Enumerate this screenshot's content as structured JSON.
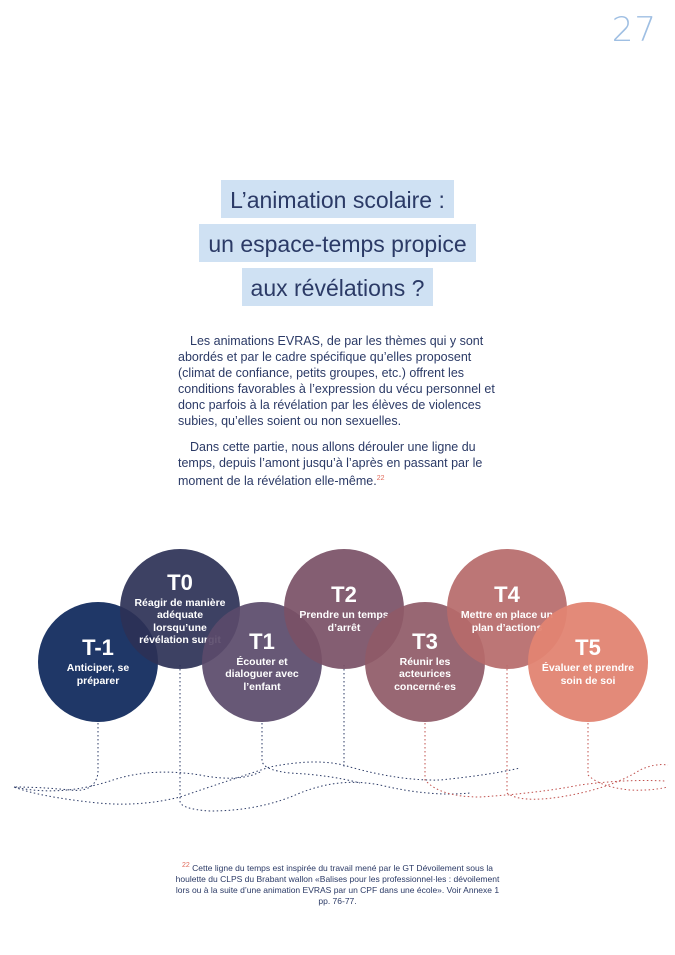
{
  "page_number": "27",
  "title_lines": [
    "L’animation scolaire :",
    "un espace-temps propice",
    "aux révélations ?"
  ],
  "intro": {
    "p1": "Les animations EVRAS, de par les thèmes qui y sont abordés et par le cadre spécifique qu’elles proposent (climat de confiance, petits groupes, etc.) offrent les conditions favorables à l’expression du vécu personnel et donc parfois à la révélation par les élèves de violences subies, qu’elles soient ou non sexuelles.",
    "p2": "Dans cette partie, nous allons dérouler une ligne du temps, depuis l’amont jusqu’à l’après en passant par le moment de la révélation elle-même.",
    "footnote_ref": "22"
  },
  "timeline": [
    {
      "code": "T-1",
      "label": "Anticiper, se préparer",
      "color": "#1f3767"
    },
    {
      "code": "T0",
      "label": "Réagir de manière adéquate lorsqu’une révélation surgit",
      "color": "#2d3156"
    },
    {
      "code": "T1",
      "label": "Écouter et dialoguer avec l’enfant",
      "color": "#5a4a6a"
    },
    {
      "code": "T2",
      "label": "Prendre un temps d’arrêt",
      "color": "#7a5066"
    },
    {
      "code": "T3",
      "label": "Réunir les acteurices concerné·es",
      "color": "#8f5a67"
    },
    {
      "code": "T4",
      "label": "Mettre en place un plan d’actions",
      "color": "#b66a6a"
    },
    {
      "code": "T5",
      "label": "Évaluer et prendre soin de soi",
      "color": "#e28472"
    }
  ],
  "footnote": {
    "number": "22",
    "text": "Cette ligne du temps est inspirée du travail mené par le GT Dévoilement sous la houlette du CLPS du Brabant wallon «Balises pour les professionnel·les : dévoilement lors ou à la suite d’une animation EVRAS par un CPF dans une école». Voir Annexe 1 pp. 76-77."
  }
}
